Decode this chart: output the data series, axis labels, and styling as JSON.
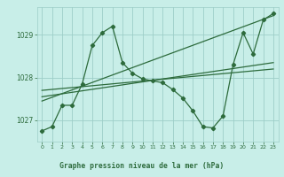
{
  "title": "Graphe pression niveau de la mer (hPa)",
  "background_color": "#c8eee8",
  "grid_color": "#9ecec8",
  "line_color": "#2d6b3c",
  "xlim": [
    -0.5,
    23.5
  ],
  "ylim": [
    1026.5,
    1029.65
  ],
  "yticks": [
    1027,
    1028,
    1029
  ],
  "xticks": [
    0,
    1,
    2,
    3,
    4,
    5,
    6,
    7,
    8,
    9,
    10,
    11,
    12,
    13,
    14,
    15,
    16,
    17,
    18,
    19,
    20,
    21,
    22,
    23
  ],
  "series1_x": [
    0,
    1,
    2,
    3,
    4,
    5,
    6,
    7,
    8,
    9,
    10,
    11,
    12,
    13,
    14,
    15,
    16,
    17,
    18,
    19,
    20,
    21,
    22,
    23
  ],
  "series1_y": [
    1026.75,
    1026.85,
    1027.35,
    1027.35,
    1027.85,
    1028.75,
    1029.05,
    1029.2,
    1028.35,
    1028.1,
    1027.97,
    1027.92,
    1027.88,
    1027.72,
    1027.52,
    1027.22,
    1026.85,
    1026.82,
    1027.1,
    1028.3,
    1029.05,
    1028.55,
    1029.35,
    1029.5
  ],
  "trend1_x": [
    0,
    23
  ],
  "trend1_y": [
    1027.45,
    1029.45
  ],
  "trend2_x": [
    0,
    23
  ],
  "trend2_y": [
    1027.55,
    1028.35
  ],
  "trend3_x": [
    0,
    23
  ],
  "trend3_y": [
    1027.7,
    1028.2
  ]
}
